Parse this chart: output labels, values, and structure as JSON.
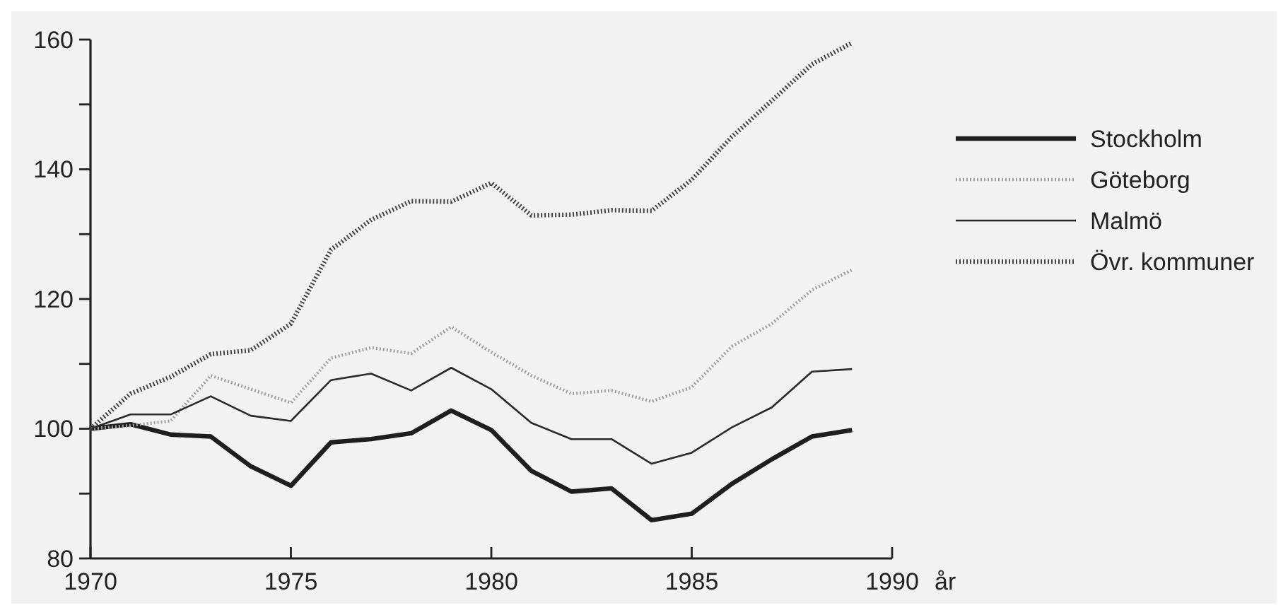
{
  "chart_data": {
    "type": "line",
    "xlabel": "år",
    "x": [
      1970,
      1971,
      1972,
      1973,
      1974,
      1975,
      1976,
      1977,
      1978,
      1979,
      1980,
      1981,
      1982,
      1983,
      1984,
      1985,
      1986,
      1987,
      1988,
      1989
    ],
    "xlim": [
      1970,
      1990
    ],
    "xticks": [
      1970,
      1975,
      1980,
      1985,
      1990
    ],
    "ylim": [
      80,
      160
    ],
    "yticks": [
      80,
      {
        "value": 90,
        "label": null
      },
      100,
      {
        "value": 110,
        "label": null
      },
      120,
      {
        "value": 130,
        "label": null
      },
      140,
      {
        "value": 150,
        "label": null
      },
      160
    ],
    "grid": false,
    "legend": "right",
    "series": [
      {
        "name": "Stockholm",
        "color": "#1e1e1e",
        "line_style": "solid",
        "values": [
          100,
          100.7,
          99.1,
          98.8,
          94.2,
          91.2,
          97.9,
          98.4,
          99.3,
          102.8,
          99.8,
          93.5,
          90.3,
          90.8,
          85.9,
          86.9,
          91.5,
          95.3,
          98.8,
          99.8
        ]
      },
      {
        "name": "Göteborg",
        "color": "#a0a0a0",
        "line_style": "dotted",
        "values": [
          100,
          100.5,
          101.2,
          108.2,
          106.1,
          104.0,
          110.9,
          112.5,
          111.6,
          115.7,
          111.8,
          108.2,
          105.4,
          105.9,
          104.2,
          106.4,
          112.7,
          116.2,
          121.4,
          124.5
        ]
      },
      {
        "name": "Malmö",
        "color": "#2a2a2a",
        "line_style": "solid",
        "values": [
          100,
          102.2,
          102.2,
          105.0,
          102.0,
          101.2,
          107.5,
          108.5,
          105.9,
          109.4,
          106.1,
          100.9,
          98.4,
          98.4,
          94.6,
          96.3,
          100.2,
          103.3,
          108.8,
          109.2
        ]
      },
      {
        "name": "Övr. kommuner",
        "color": "#444444",
        "line_style": "dotted",
        "values": [
          100,
          105.4,
          108.0,
          111.5,
          112.1,
          116.2,
          127.6,
          132.2,
          135.1,
          135.0,
          137.9,
          132.9,
          133.0,
          133.7,
          133.6,
          138.4,
          145.0,
          150.6,
          156.2,
          159.5
        ]
      }
    ]
  }
}
